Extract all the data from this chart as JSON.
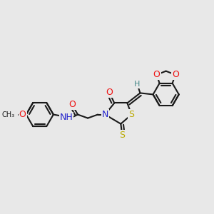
{
  "bg": "#e8e8e8",
  "bc": "#1a1a1a",
  "colors": {
    "O": "#ee1111",
    "N": "#2222cc",
    "S": "#bbaa00",
    "H": "#448888",
    "C": "#1a1a1a"
  },
  "lw": 1.5,
  "lw_inner": 1.4,
  "fs": 9.0,
  "fs_small": 7.5
}
